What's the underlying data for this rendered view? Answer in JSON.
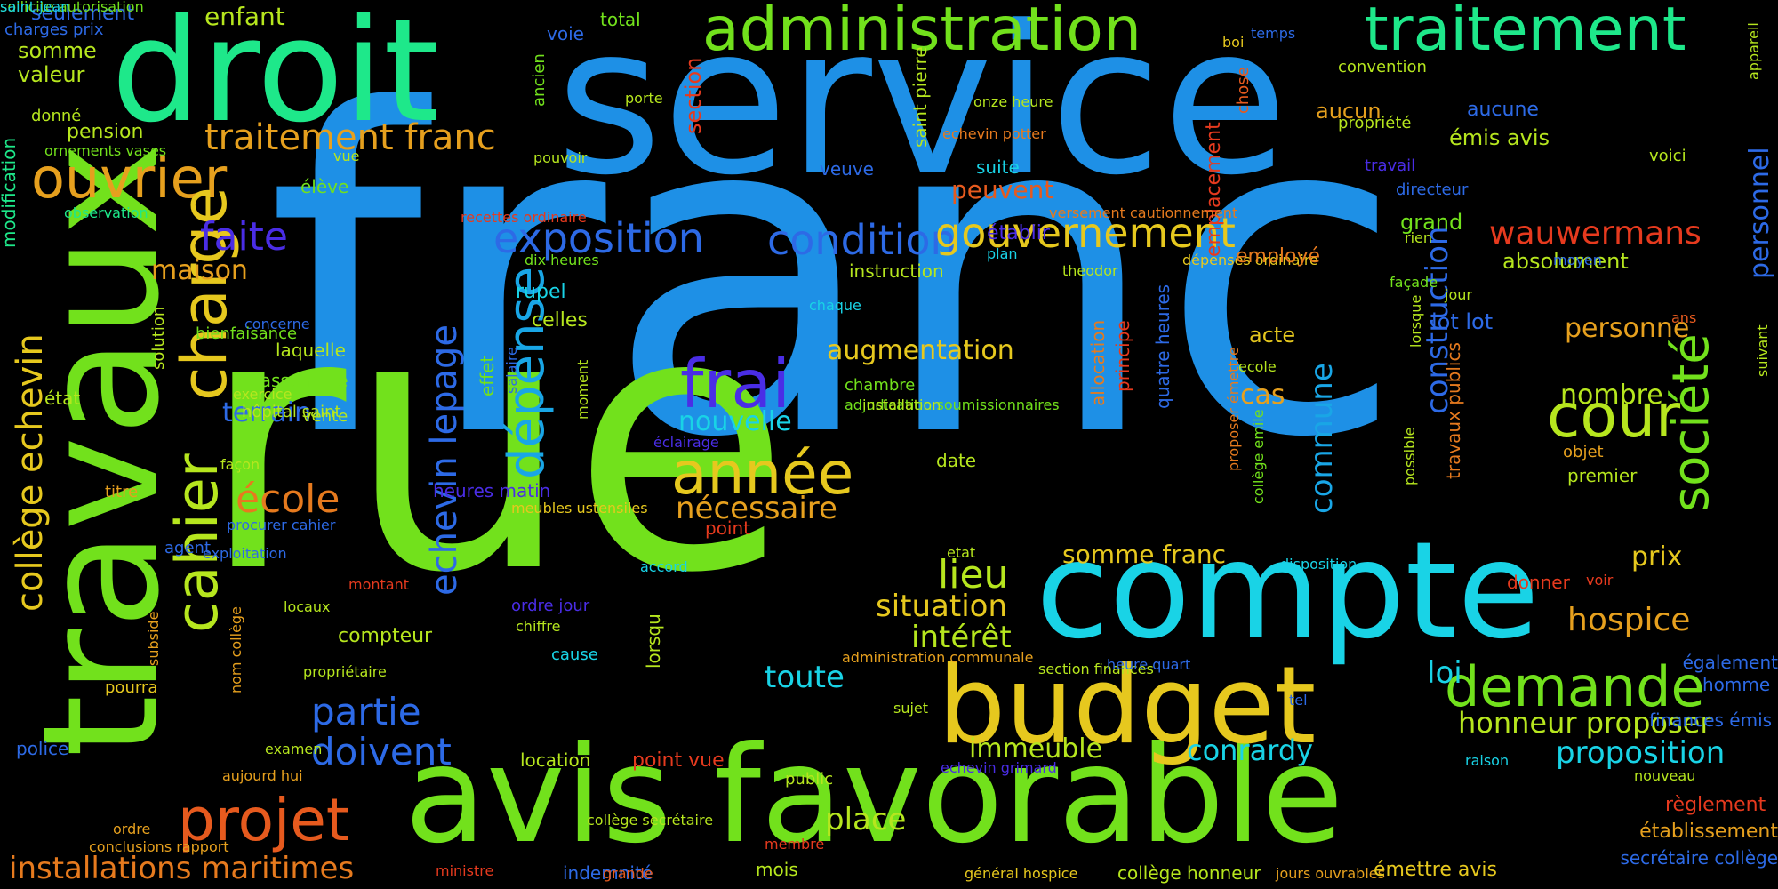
{
  "background": "#000000",
  "palette": [
    "#1e90e6",
    "#72e11c",
    "#1ee88a",
    "#19d3e6",
    "#e6c81e",
    "#e67a1e",
    "#4a2de6",
    "#e63a1e",
    "#b6e61e",
    "#2d6ae6",
    "#e61e3a"
  ],
  "words": [
    {
      "text": "franc",
      "color": "#1e90e6"
    },
    {
      "text": "service",
      "color": "#1e90e6"
    },
    {
      "text": "rue",
      "color": "#72e11c"
    },
    {
      "text": "droit",
      "color": "#1ee88a"
    },
    {
      "text": "travaux",
      "color": "#72e11c"
    },
    {
      "text": "compte",
      "color": "#19d3e6"
    },
    {
      "text": "avis favorable",
      "color": "#72e11c"
    },
    {
      "text": "budget",
      "color": "#e6c81e"
    },
    {
      "text": "administration",
      "color": "#72e11c"
    },
    {
      "text": "traitement",
      "color": "#1ee88a"
    },
    {
      "text": "ouvrier",
      "color": "#e6a01e"
    },
    {
      "text": "cahier",
      "color": "#b6e61e"
    },
    {
      "text": "charge",
      "color": "#e6c81e"
    },
    {
      "text": "projet",
      "color": "#e65a1e"
    },
    {
      "text": "année",
      "color": "#e6c81e"
    },
    {
      "text": "dépense",
      "color": "#19a6e6"
    },
    {
      "text": "demande",
      "color": "#72e11c"
    },
    {
      "text": "société",
      "color": "#72e11c"
    },
    {
      "text": "cour",
      "color": "#b6e61e"
    },
    {
      "text": "frai",
      "color": "#4a2de6"
    },
    {
      "text": "exposition",
      "color": "#2d6ae6"
    },
    {
      "text": "condition",
      "color": "#2d6ae6"
    },
    {
      "text": "gouvernement",
      "color": "#e6c81e"
    },
    {
      "text": "wauwermans",
      "color": "#e63a1e"
    },
    {
      "text": "traitement franc",
      "color": "#e6a01e"
    },
    {
      "text": "collège echevin",
      "color": "#e6c81e"
    },
    {
      "text": "echevin lepage",
      "color": "#2d6ae6"
    },
    {
      "text": "école",
      "color": "#e67a1e"
    },
    {
      "text": "faite",
      "color": "#4a2de6"
    },
    {
      "text": "partie",
      "color": "#2d6ae6"
    },
    {
      "text": "doivent",
      "color": "#2d6ae6"
    },
    {
      "text": "installations maritimes",
      "color": "#e67a1e"
    },
    {
      "text": "commune",
      "color": "#19a6e6"
    },
    {
      "text": "construction",
      "color": "#2d6ae6"
    },
    {
      "text": "hospice",
      "color": "#e6a01e"
    },
    {
      "text": "proposition",
      "color": "#19d3e6"
    },
    {
      "text": "honneur proposer",
      "color": "#b6e61e"
    },
    {
      "text": "conrardy",
      "color": "#19d3e6"
    },
    {
      "text": "immeuble",
      "color": "#b6e61e"
    },
    {
      "text": "place",
      "color": "#b6e61e"
    },
    {
      "text": "lieu",
      "color": "#b6e61e"
    },
    {
      "text": "situation",
      "color": "#e6c81e"
    },
    {
      "text": "intérêt",
      "color": "#b6e61e"
    },
    {
      "text": "toute",
      "color": "#19d3e6"
    },
    {
      "text": "loi",
      "color": "#19d3e6"
    },
    {
      "text": "nécessaire",
      "color": "#e6a01e"
    },
    {
      "text": "augmentation",
      "color": "#e6c81e"
    },
    {
      "text": "nouvelle",
      "color": "#19d3e6"
    },
    {
      "text": "terrain",
      "color": "#2d6ae6"
    },
    {
      "text": "maison",
      "color": "#e6a01e"
    },
    {
      "text": "personne",
      "color": "#e6a01e"
    },
    {
      "text": "nombre",
      "color": "#b6e61e"
    },
    {
      "text": "prix",
      "color": "#e6c81e"
    },
    {
      "text": "cas",
      "color": "#e6a01e"
    },
    {
      "text": "acte",
      "color": "#e6c81e"
    },
    {
      "text": "somme franc",
      "color": "#e6c81e"
    },
    {
      "text": "personnel",
      "color": "#2d6ae6"
    },
    {
      "text": "enfant",
      "color": "#b6e61e"
    },
    {
      "text": "somme",
      "color": "#b6e61e"
    },
    {
      "text": "valeur",
      "color": "#b6e61e"
    },
    {
      "text": "seulement",
      "color": "#2d6ae6"
    },
    {
      "text": "charges prix",
      "color": "#2d6ae6"
    },
    {
      "text": "pension",
      "color": "#b6e61e"
    },
    {
      "text": "donné",
      "color": "#b6e61e"
    },
    {
      "text": "ornements vases",
      "color": "#72e11c"
    },
    {
      "text": "observation",
      "color": "#1ee88a"
    },
    {
      "text": "modification",
      "color": "#1ee88a"
    },
    {
      "text": "élève",
      "color": "#72e11c"
    },
    {
      "text": "vue",
      "color": "#b6e61e"
    },
    {
      "text": "pouvoir",
      "color": "#b6e61e"
    },
    {
      "text": "section",
      "color": "#e63a1e"
    },
    {
      "text": "voie",
      "color": "#2d6ae6"
    },
    {
      "text": "total",
      "color": "#72e11c"
    },
    {
      "text": "ancien",
      "color": "#72e11c"
    },
    {
      "text": "porte",
      "color": "#b6e61e"
    },
    {
      "text": "saint pierre",
      "color": "#b6e61e"
    },
    {
      "text": "veuve",
      "color": "#2d6ae6"
    },
    {
      "text": "suite",
      "color": "#19d3e6"
    },
    {
      "text": "peuvent",
      "color": "#e65a1e"
    },
    {
      "text": "onze heure",
      "color": "#b6e61e"
    },
    {
      "text": "echevin potter",
      "color": "#e67a1e"
    },
    {
      "text": "boi",
      "color": "#e6c81e"
    },
    {
      "text": "temps",
      "color": "#2d6ae6"
    },
    {
      "text": "convention",
      "color": "#b6e61e"
    },
    {
      "text": "aucun",
      "color": "#e6a01e"
    },
    {
      "text": "aucune",
      "color": "#2d6ae6"
    },
    {
      "text": "propriété",
      "color": "#b6e61e"
    },
    {
      "text": "émis avis",
      "color": "#b6e61e"
    },
    {
      "text": "chose",
      "color": "#e65a1e"
    },
    {
      "text": "emplacement",
      "color": "#e63a1e"
    },
    {
      "text": "travail",
      "color": "#4a2de6"
    },
    {
      "text": "directeur",
      "color": "#2d6ae6"
    },
    {
      "text": "voici",
      "color": "#b6e61e"
    },
    {
      "text": "appareil",
      "color": "#b6e61e"
    },
    {
      "text": "versement cautionnement",
      "color": "#e67a1e"
    },
    {
      "text": "établir",
      "color": "#4a2de6"
    },
    {
      "text": "plan",
      "color": "#19d3e6"
    },
    {
      "text": "theodor",
      "color": "#b6e61e"
    },
    {
      "text": "grand",
      "color": "#72e11c"
    },
    {
      "text": "rien",
      "color": "#b6e61e"
    },
    {
      "text": "absolument",
      "color": "#b6e61e"
    },
    {
      "text": "moyen",
      "color": "#2d6ae6"
    },
    {
      "text": "recettes ordinaire",
      "color": "#e63a1e"
    },
    {
      "text": "dix heures",
      "color": "#72e11c"
    },
    {
      "text": "dépenses ordinaire",
      "color": "#e6c81e"
    },
    {
      "text": "employé",
      "color": "#e67a1e"
    },
    {
      "text": "instruction",
      "color": "#b6e61e"
    },
    {
      "text": "rupel",
      "color": "#19d3e6"
    },
    {
      "text": "celles",
      "color": "#b6e61e"
    },
    {
      "text": "chaque",
      "color": "#19d3e6"
    },
    {
      "text": "façade",
      "color": "#72e11c"
    },
    {
      "text": "jour",
      "color": "#b6e61e"
    },
    {
      "text": "lot lot",
      "color": "#2d6ae6"
    },
    {
      "text": "ans",
      "color": "#e65a1e"
    },
    {
      "text": "lorsque",
      "color": "#b6e61e"
    },
    {
      "text": "suivant",
      "color": "#b6e61e"
    },
    {
      "text": "chambre",
      "color": "#72e11c"
    },
    {
      "text": "adjudication soumissionnaires",
      "color": "#72e11c"
    },
    {
      "text": "installation",
      "color": "#b6e61e"
    },
    {
      "text": "date",
      "color": "#b6e61e"
    },
    {
      "text": "ecole",
      "color": "#b6e61e"
    },
    {
      "text": "objet",
      "color": "#e6a01e"
    },
    {
      "text": "premier",
      "color": "#b6e61e"
    },
    {
      "text": "concerne",
      "color": "#2d6ae6"
    },
    {
      "text": "laquelle",
      "color": "#b6e61e"
    },
    {
      "text": "dassonville",
      "color": "#72e11c"
    },
    {
      "text": "état",
      "color": "#b6e61e"
    },
    {
      "text": "exercice",
      "color": "#b6e61e"
    },
    {
      "text": "solution",
      "color": "#b6e61e"
    },
    {
      "text": "bienfaisance",
      "color": "#72e11c"
    },
    {
      "text": "hôpital saint",
      "color": "#b6e61e"
    },
    {
      "text": "vente",
      "color": "#b6e61e"
    },
    {
      "text": "façon",
      "color": "#b6e61e"
    },
    {
      "text": "titre",
      "color": "#e6a01e"
    },
    {
      "text": "procurer cahier",
      "color": "#2d6ae6"
    },
    {
      "text": "agent",
      "color": "#2d6ae6"
    },
    {
      "text": "exploitation",
      "color": "#2d6ae6"
    },
    {
      "text": "montant",
      "color": "#e63a1e"
    },
    {
      "text": "locaux",
      "color": "#b6e61e"
    },
    {
      "text": "subside",
      "color": "#e6a01e"
    },
    {
      "text": "nom collège",
      "color": "#e6a01e"
    },
    {
      "text": "compteur",
      "color": "#b6e61e"
    },
    {
      "text": "propriétaire",
      "color": "#b6e61e"
    },
    {
      "text": "pourra",
      "color": "#e6c81e"
    },
    {
      "text": "police",
      "color": "#2d6ae6"
    },
    {
      "text": "examen",
      "color": "#b6e61e"
    },
    {
      "text": "aujourd hui",
      "color": "#e6a01e"
    },
    {
      "text": "ordre",
      "color": "#e6a01e"
    },
    {
      "text": "conclusions rapport",
      "color": "#e6a01e"
    },
    {
      "text": "ministre",
      "color": "#e63a1e"
    },
    {
      "text": "indemnité",
      "color": "#2d6ae6"
    },
    {
      "text": "grande",
      "color": "#e65a1e"
    },
    {
      "text": "mois",
      "color": "#b6e61e"
    },
    {
      "text": "général hospice",
      "color": "#e6c81e"
    },
    {
      "text": "collège honneur",
      "color": "#b6e61e"
    },
    {
      "text": "jours ouvrables",
      "color": "#e6a01e"
    },
    {
      "text": "émettre avis",
      "color": "#e6c81e"
    },
    {
      "text": "secrétaire collège",
      "color": "#2d6ae6"
    },
    {
      "text": "établissement",
      "color": "#e6a01e"
    },
    {
      "text": "règlement",
      "color": "#e63a1e"
    },
    {
      "text": "nouveau",
      "color": "#b6e61e"
    },
    {
      "text": "raison",
      "color": "#19d3e6"
    },
    {
      "text": "finances émis",
      "color": "#2d6ae6"
    },
    {
      "text": "homme",
      "color": "#2d6ae6"
    },
    {
      "text": "également",
      "color": "#2d6ae6"
    },
    {
      "text": "voir",
      "color": "#e63a1e"
    },
    {
      "text": "donner",
      "color": "#e63a1e"
    },
    {
      "text": "disposition",
      "color": "#19d3e6"
    },
    {
      "text": "etat",
      "color": "#b6e61e"
    },
    {
      "text": "section finances",
      "color": "#b6e61e"
    },
    {
      "text": "heure quart",
      "color": "#2d6ae6"
    },
    {
      "text": "tel",
      "color": "#2d6ae6"
    },
    {
      "text": "echevin grimard",
      "color": "#4a2de6"
    },
    {
      "text": "sujet",
      "color": "#b6e61e"
    },
    {
      "text": "administration communale",
      "color": "#e6a01e"
    },
    {
      "text": "accord",
      "color": "#19d3e6"
    },
    {
      "text": "lorsqu",
      "color": "#b6e61e"
    },
    {
      "text": "cause",
      "color": "#19d3e6"
    },
    {
      "text": "ordre jour",
      "color": "#4a2de6"
    },
    {
      "text": "chiffre",
      "color": "#b6e61e"
    },
    {
      "text": "location",
      "color": "#b6e61e"
    },
    {
      "text": "point vue",
      "color": "#e63a1e"
    },
    {
      "text": "public",
      "color": "#b6e61e"
    },
    {
      "text": "collège secrétaire",
      "color": "#b6e61e"
    },
    {
      "text": "membre",
      "color": "#e63a1e"
    },
    {
      "text": "point",
      "color": "#e63a1e"
    },
    {
      "text": "éclairage",
      "color": "#4a2de6"
    },
    {
      "text": "meubles ustensiles",
      "color": "#e6c81e"
    },
    {
      "text": "heures matin",
      "color": "#4a2de6"
    },
    {
      "text": "moment",
      "color": "#b6e61e"
    },
    {
      "text": "salaire",
      "color": "#2d6ae6"
    },
    {
      "text": "effet",
      "color": "#72e11c"
    },
    {
      "text": "allocation",
      "color": "#e67a1e"
    },
    {
      "text": "principe",
      "color": "#e63a1e"
    },
    {
      "text": "quatre heures",
      "color": "#2d6ae6"
    },
    {
      "text": "proposer émettre",
      "color": "#e67a1e"
    },
    {
      "text": "collège emile",
      "color": "#72e11c"
    },
    {
      "text": "possible",
      "color": "#b6e61e"
    },
    {
      "text": "travaux publics",
      "color": "#e67a1e"
    },
    {
      "text": "sollicite autorisation",
      "color": "#72e11c"
    },
    {
      "text": "saint jean",
      "color": "#19d3e6"
    }
  ]
}
